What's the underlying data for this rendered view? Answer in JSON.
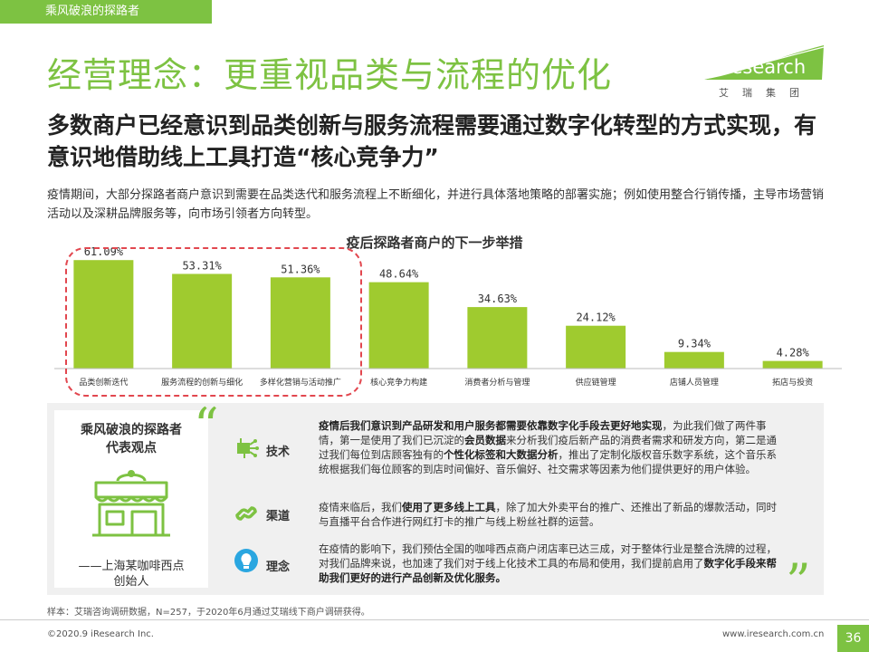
{
  "header": {
    "tab": "乘风破浪的探路者",
    "title": "经营理念：更重视品类与流程的优化",
    "subtitle": "多数商户已经意识到品类创新与服务流程需要通过数字化转型的方式实现，有意识地借助线上工具打造“核心竞争力”",
    "description": "疫情期间，大部分探路者商户意识到需要在品类迭代和服务流程上不断细化，并进行具体落地策略的部署实施；例如使用整合行销传播，主导市场营销活动以及深耕品牌服务等，向市场引领者方向转型。"
  },
  "logo": {
    "name": "iResearch",
    "sub": "艾瑞集团"
  },
  "chart_data": {
    "type": "bar",
    "title": "疫后探路者商户的下一步举措",
    "categories": [
      "品类创新迭代",
      "服务流程的创新与细化",
      "多样化营销与活动推广",
      "核心竞争力构建",
      "消费者分析与管理",
      "供应链管理",
      "店铺人员管理",
      "拓店与投资"
    ],
    "values": [
      61.09,
      53.31,
      51.36,
      48.64,
      34.63,
      24.12,
      9.34,
      4.28
    ],
    "value_labels": [
      "61.09%",
      "53.31%",
      "51.36%",
      "48.64%",
      "34.63%",
      "24.12%",
      "9.34%",
      "4.28%"
    ],
    "highlighted": [
      0,
      1,
      2
    ],
    "ylim": [
      0,
      65
    ],
    "colors": {
      "bar": "#9fcb2f",
      "highlight_border": "#e2474f"
    },
    "xlabel": "",
    "ylabel": ""
  },
  "panel": {
    "left_title": "乘风破浪的探路者\n代表观点",
    "attribution": "——上海某咖啡西点\n创始人",
    "open_quote": "“",
    "close_quote": "”",
    "rows": [
      {
        "label": "技术",
        "icon": "circuit-icon",
        "segments": [
          {
            "t": "疫情后我们意识到产品研发和用户服务都需要依靠数字化手段去更好地实现",
            "b": true
          },
          {
            "t": "，为此我们做了两件事情，第一是使用了我们已沉淀的",
            "b": false
          },
          {
            "t": "会员数据",
            "b": true
          },
          {
            "t": "来分析我们疫后新产品的消费者需求和研发方向，第二是通过我们每位到店顾客独有的",
            "b": false
          },
          {
            "t": "个性化标签和大数据分析",
            "b": true
          },
          {
            "t": "，推出了定制化版权音乐数字系统，这个音乐系统根据我们每位顾客的到店时间偏好、音乐偏好、社交需求等因素为他们提供更好的用户体验。",
            "b": false
          }
        ]
      },
      {
        "label": "渠道",
        "icon": "link-icon",
        "segments": [
          {
            "t": "疫情来临后，我们",
            "b": false
          },
          {
            "t": "使用了更多线上工具",
            "b": true
          },
          {
            "t": "，除了加大外卖平台的推广、还推出了新品的爆款活动，同时与直播平台合作进行网红打卡的推广与线上粉丝社群的运营。",
            "b": false
          }
        ]
      },
      {
        "label": "理念",
        "icon": "lightbulb-icon",
        "segments": [
          {
            "t": "在疫情的影响下，我们预估全国的咖啡西点商户闭店率已达三成，对于整体行业是整合洗牌的过程，对我们品牌来说，也加速了我们对于线上化技术工具的布局和使用，我们提前启用了",
            "b": false
          },
          {
            "t": "数字化手段来帮助我们更好的进行产品创新及优化服务。",
            "b": true
          }
        ]
      }
    ]
  },
  "footer": {
    "note": "样本：艾瑞咨询调研数据，N=257，于2020年6月通过艾瑞线下商户调研获得。",
    "copyright": "©2020.9 iResearch Inc.",
    "url": "www.iresearch.com.cn",
    "page": "36"
  }
}
